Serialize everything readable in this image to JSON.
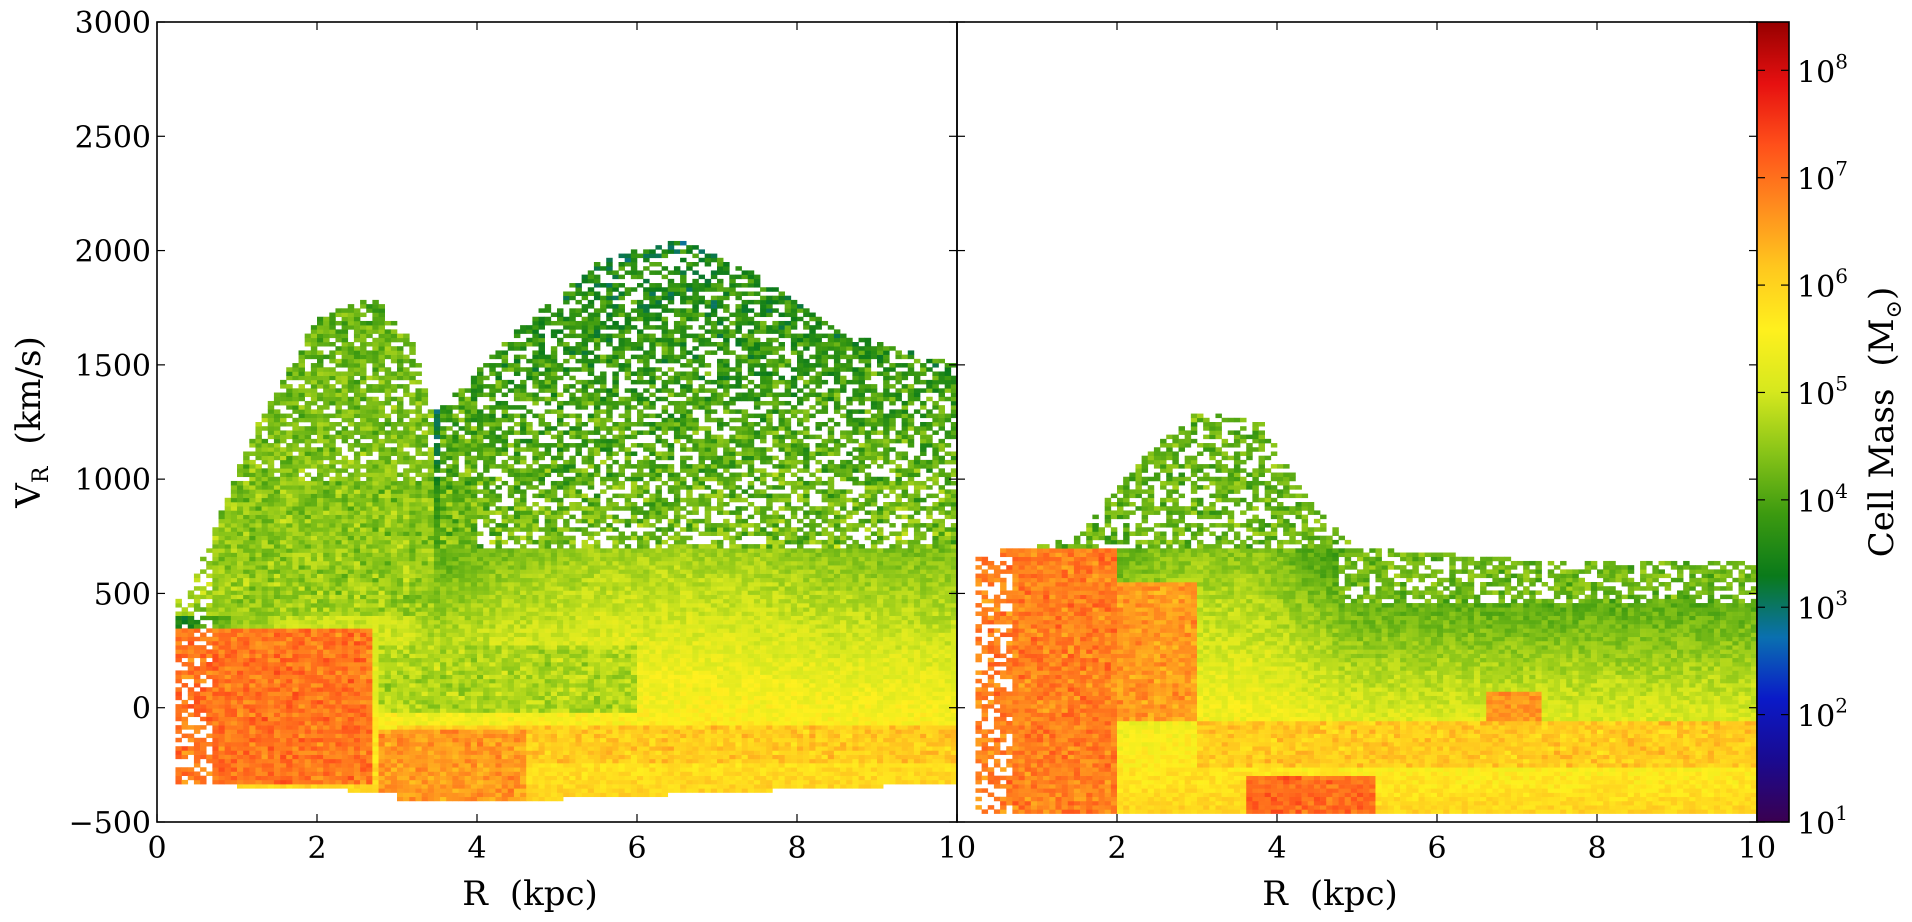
{
  "chart_data": [
    {
      "type": "heatmap",
      "panel": "left",
      "title": "",
      "xlabel": "R",
      "xunit": "(kpc)",
      "ylabel": "V",
      "ylabel_sub": "R",
      "yunit": "(km/s)",
      "xlim": [
        0,
        10
      ],
      "ylim": [
        -500,
        3000
      ],
      "xticks": [
        0,
        2,
        4,
        6,
        8,
        10
      ],
      "yticks": [
        -500,
        0,
        500,
        1000,
        1500,
        2000,
        2500,
        3000
      ],
      "xtick_labels": [
        "0",
        "2",
        "4",
        "6",
        "8",
        "10"
      ],
      "ytick_labels": [
        "−500",
        "0",
        "500",
        "1000",
        "1500",
        "2000",
        "2500",
        "3000"
      ],
      "scale": "log",
      "regions": [
        {
          "name": "upper envelope first peak",
          "x": [
            0.4,
            1.2,
            2.0,
            2.7,
            3.2,
            3.5
          ],
          "y": [
            500,
            1200,
            1700,
            1800,
            1600,
            1200
          ],
          "log_mass": 4
        },
        {
          "name": "upper envelope second peak",
          "x": [
            3.5,
            4.5,
            5.5,
            6.5,
            7.5,
            8.5,
            10.0
          ],
          "y": [
            1300,
            1650,
            1950,
            2050,
            1900,
            1650,
            1500
          ],
          "log_mass": 3.5
        },
        {
          "name": "dense core",
          "x": [
            0.2,
            1.0,
            2.0,
            3.0
          ],
          "y": [
            -350,
            350,
            300,
            -350
          ],
          "log_mass": 6.8
        },
        {
          "name": "lower band",
          "x": [
            3.0,
            4.0,
            6.0,
            10.0
          ],
          "y": [
            -200,
            -150,
            -150,
            -100
          ],
          "log_mass": 6.0
        }
      ]
    },
    {
      "type": "heatmap",
      "panel": "right",
      "title": "",
      "xlabel": "R",
      "xunit": "(kpc)",
      "xlim": [
        0,
        10
      ],
      "ylim": [
        -500,
        3000
      ],
      "xticks": [
        0,
        2,
        4,
        6,
        8,
        10
      ],
      "xtick_labels": [
        "",
        "2",
        "4",
        "6",
        "8",
        "10"
      ],
      "scale": "log",
      "regions": [
        {
          "name": "upper envelope peak",
          "x": [
            1.4,
            2.2,
            3.0,
            3.8,
            4.4,
            5.0
          ],
          "y": [
            700,
            1050,
            1300,
            1250,
            900,
            700
          ],
          "log_mass": 4
        },
        {
          "name": "flat plateau",
          "x": [
            5.0,
            7.0,
            10.0
          ],
          "y": [
            700,
            650,
            650
          ],
          "log_mass": 4.3
        },
        {
          "name": "dense core",
          "x": [
            0.2,
            1.0,
            2.0,
            3.0
          ],
          "y": [
            -450,
            700,
            550,
            -100
          ],
          "log_mass": 6.8
        },
        {
          "name": "lower clump",
          "x": [
            3.8,
            4.5,
            5.2
          ],
          "y": [
            -450,
            -350,
            -450
          ],
          "log_mass": 7.0
        }
      ]
    }
  ],
  "colorbar": {
    "label": "Cell Mass",
    "unit_open": "(M",
    "unit_sub": "⊙",
    "unit_close": ")",
    "tick_labels": [
      "10",
      "10",
      "10",
      "10",
      "10",
      "10",
      "10",
      "10"
    ],
    "tick_exponents": [
      "1",
      "2",
      "3",
      "4",
      "5",
      "6",
      "7",
      "8"
    ],
    "min_exp": 1,
    "max_exp": 8.45,
    "colors": [
      "#3a0050",
      "#1a0a90",
      "#0a1ac8",
      "#0a70b0",
      "#0a7a1a",
      "#3c9a10",
      "#88c418",
      "#d6e81e",
      "#fff01e",
      "#ffc81e",
      "#ff8c1e",
      "#ff501a",
      "#e61010",
      "#960000"
    ]
  }
}
